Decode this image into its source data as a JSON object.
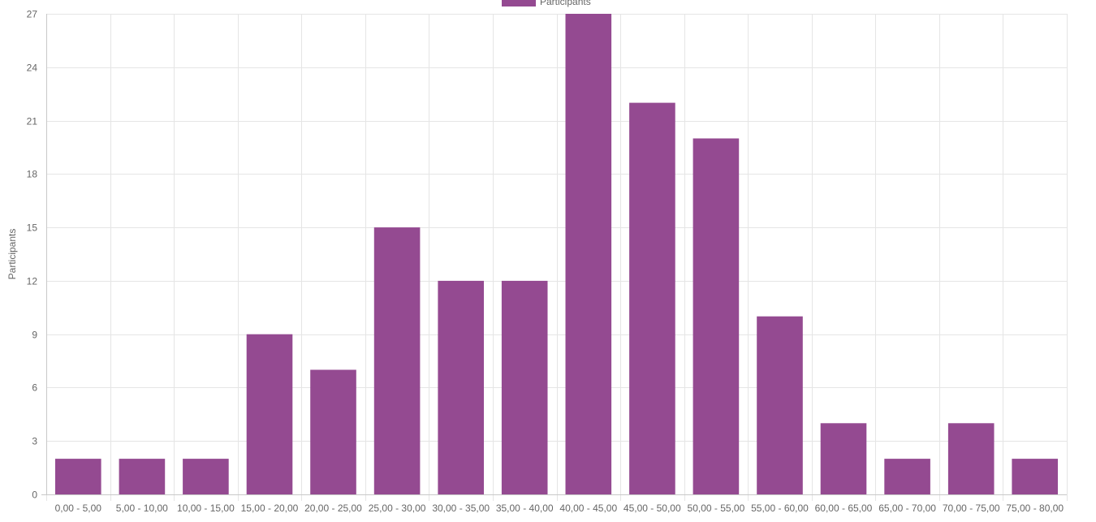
{
  "colors": {
    "bar": "#944a91",
    "grid": "#e5e5e5",
    "text": "#666666"
  },
  "chart_data": {
    "type": "bar",
    "title": "",
    "xlabel": "",
    "ylabel": "Participants",
    "grid": true,
    "legend_position": "top-center",
    "ylim": [
      0,
      27
    ],
    "yticks": [
      0,
      3,
      6,
      9,
      12,
      15,
      18,
      21,
      24,
      27
    ],
    "categories": [
      "0,00 - 5,00",
      "5,00 - 10,00",
      "10,00 - 15,00",
      "15,00 - 20,00",
      "20,00 - 25,00",
      "25,00 - 30,00",
      "30,00 - 35,00",
      "35,00 - 40,00",
      "40,00 - 45,00",
      "45,00 - 50,00",
      "50,00 - 55,00",
      "55,00 - 60,00",
      "60,00 - 65,00",
      "65,00 - 70,00",
      "70,00 - 75,00",
      "75,00 - 80,00"
    ],
    "series": [
      {
        "name": "Participants",
        "values": [
          2,
          2,
          2,
          9,
          7,
          15,
          12,
          12,
          27,
          22,
          20,
          10,
          4,
          2,
          4,
          2
        ]
      }
    ]
  }
}
